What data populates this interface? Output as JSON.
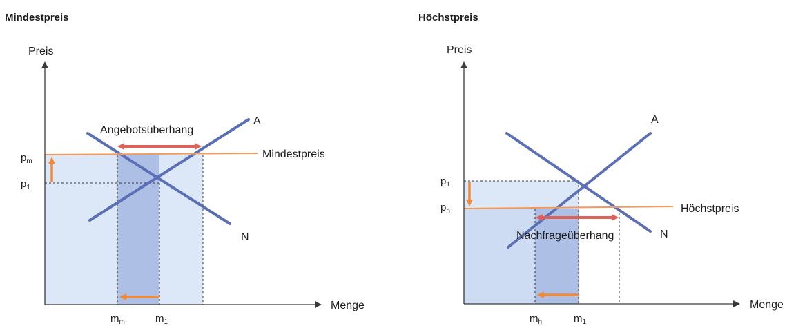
{
  "left_panel": {
    "title": "Mindestpreis",
    "y_axis_label": "Preis",
    "x_axis_label": "Menge",
    "supply_label": "A",
    "demand_label": "N",
    "price_line_label": "Mindestpreis",
    "gap_label": "Angebotsüberhang",
    "price_tick_upper": {
      "base": "p",
      "sub": "m"
    },
    "price_tick_lower": {
      "base": "p",
      "sub": "1"
    },
    "qty_tick_left": {
      "base": "m",
      "sub": "m"
    },
    "qty_tick_right": {
      "base": "m",
      "sub": "1"
    }
  },
  "right_panel": {
    "title": "Höchstpreis",
    "y_axis_label": "Preis",
    "x_axis_label": "Menge",
    "supply_label": "A",
    "demand_label": "N",
    "price_line_label": "Höchstpreis",
    "gap_label": "Nachfrageüberhang",
    "price_tick_upper": {
      "base": "p",
      "sub": "1"
    },
    "price_tick_lower": {
      "base": "p",
      "sub": "h"
    },
    "qty_tick_left": {
      "base": "m",
      "sub": "h"
    },
    "qty_tick_right": {
      "base": "m",
      "sub": "1"
    }
  },
  "colors": {
    "curve": "#5a6fb5",
    "price_line": "#f39a5a",
    "gap_arrow": "#e0605a",
    "shift_arrow": "#f08a3c",
    "area_light": "#dce8f7",
    "area_dark": "#aebfe6",
    "axis": "#3a3a3a"
  }
}
